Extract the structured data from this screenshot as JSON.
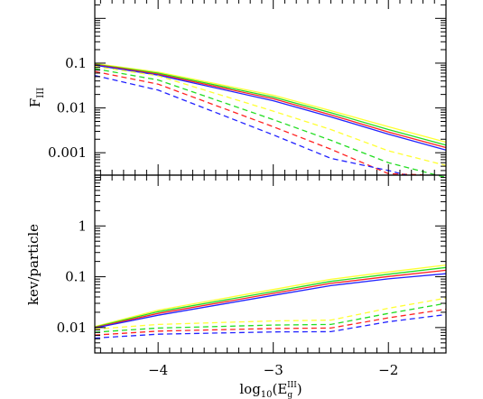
{
  "chart_data": [
    {
      "type": "line",
      "panel": "top",
      "ylabel_main": "F",
      "ylabel_sub": "III",
      "xlim": [
        -4.55,
        -1.5
      ],
      "ylim_log10": [
        -3.5,
        0.45
      ],
      "yscale": "log",
      "y_tick_labels": [
        "0.1",
        "0.01",
        "0.001"
      ],
      "y_tick_values": [
        0.1,
        0.01,
        0.001
      ],
      "series": [
        {
          "color": "#ffff33",
          "style": "solid",
          "x": [
            -4.55,
            -4,
            -3,
            -2.5,
            -2,
            -1.5
          ],
          "y": [
            0.098,
            0.063,
            0.0192,
            0.0087,
            0.0038,
            0.00172
          ]
        },
        {
          "color": "#22dd22",
          "style": "solid",
          "x": [
            -4.55,
            -4,
            -3,
            -2.5,
            -2,
            -1.5
          ],
          "y": [
            0.095,
            0.06,
            0.0175,
            0.0078,
            0.0033,
            0.00148
          ]
        },
        {
          "color": "#ff2222",
          "style": "solid",
          "x": [
            -4.55,
            -4,
            -3,
            -2.5,
            -2,
            -1.5
          ],
          "y": [
            0.093,
            0.057,
            0.016,
            0.007,
            0.0029,
            0.0013
          ]
        },
        {
          "color": "#2222ff",
          "style": "solid",
          "x": [
            -4.55,
            -4,
            -3,
            -2.5,
            -2,
            -1.5
          ],
          "y": [
            0.09,
            0.054,
            0.0145,
            0.0063,
            0.0026,
            0.00115
          ]
        },
        {
          "color": "#ffff33",
          "style": "dashed",
          "x": [
            -4.55,
            -4,
            -3,
            -2.5,
            -2,
            -1.5
          ],
          "y": [
            0.085,
            0.052,
            0.0085,
            0.0033,
            0.0011,
            0.00052
          ]
        },
        {
          "color": "#22dd22",
          "style": "dashed",
          "x": [
            -4.55,
            -4,
            -3,
            -2.5,
            -2,
            -1.5
          ],
          "y": [
            0.075,
            0.042,
            0.0055,
            0.0019,
            0.0006,
            0.00028
          ]
        },
        {
          "color": "#ff2222",
          "style": "dashed",
          "x": [
            -4.55,
            -4,
            -3,
            -2.5,
            -2,
            -1.7
          ],
          "y": [
            0.065,
            0.034,
            0.0038,
            0.0012,
            0.00034,
            0.00032
          ]
        },
        {
          "color": "#2222ff",
          "style": "dashed",
          "x": [
            -4.55,
            -4,
            -3,
            -2.5,
            -2,
            -1.85
          ],
          "y": [
            0.053,
            0.025,
            0.0025,
            0.00075,
            0.0004,
            0.00032
          ]
        }
      ]
    },
    {
      "type": "line",
      "panel": "bottom",
      "ylabel": "kev/particle",
      "xlabel_main": "log",
      "xlabel_sub": "10",
      "xlabel_paren_open": "(E",
      "xlabel_sub2": "g",
      "xlabel_sup2": "III",
      "xlabel_paren_close": ")",
      "xlim": [
        -4.55,
        -1.5
      ],
      "ylim_log10": [
        -2.5,
        1.0
      ],
      "yscale": "log",
      "x_tick_labels": [
        "−4",
        "−3",
        "−2"
      ],
      "x_tick_values": [
        -4,
        -3,
        -2
      ],
      "y_tick_labels": [
        "1",
        "0.1",
        "0.01"
      ],
      "y_tick_values": [
        1,
        0.1,
        0.01
      ],
      "series": [
        {
          "color": "#ffff33",
          "style": "solid",
          "x": [
            -4.55,
            -4,
            -3,
            -2.5,
            -2,
            -1.5
          ],
          "y": [
            0.0105,
            0.022,
            0.056,
            0.089,
            0.124,
            0.17
          ]
        },
        {
          "color": "#22dd22",
          "style": "solid",
          "x": [
            -4.55,
            -4,
            -3,
            -2.5,
            -2,
            -1.5
          ],
          "y": [
            0.0102,
            0.0205,
            0.051,
            0.081,
            0.112,
            0.152
          ]
        },
        {
          "color": "#ff2222",
          "style": "solid",
          "x": [
            -4.55,
            -4,
            -3,
            -2.5,
            -2,
            -1.5
          ],
          "y": [
            0.01,
            0.019,
            0.047,
            0.074,
            0.101,
            0.134
          ]
        },
        {
          "color": "#2222ff",
          "style": "solid",
          "x": [
            -4.55,
            -4,
            -3,
            -2.5,
            -2,
            -1.5
          ],
          "y": [
            0.0098,
            0.0175,
            0.043,
            0.067,
            0.091,
            0.115
          ]
        },
        {
          "color": "#ffff33",
          "style": "dashed",
          "x": [
            -4.55,
            -4,
            -3,
            -2.5,
            -2,
            -1.5
          ],
          "y": [
            0.0093,
            0.0115,
            0.0135,
            0.014,
            0.024,
            0.038
          ]
        },
        {
          "color": "#22dd22",
          "style": "dashed",
          "x": [
            -4.55,
            -4,
            -3,
            -2.5,
            -2,
            -1.5
          ],
          "y": [
            0.0081,
            0.0098,
            0.0112,
            0.0115,
            0.019,
            0.03
          ]
        },
        {
          "color": "#ff2222",
          "style": "dashed",
          "x": [
            -4.55,
            -4,
            -3,
            -2.5,
            -2,
            -1.5
          ],
          "y": [
            0.0071,
            0.0085,
            0.0096,
            0.0098,
            0.0155,
            0.023
          ]
        },
        {
          "color": "#2222ff",
          "style": "dashed",
          "x": [
            -4.55,
            -4,
            -3,
            -2.5,
            -2,
            -1.5
          ],
          "y": [
            0.0062,
            0.0074,
            0.0082,
            0.0083,
            0.013,
            0.018
          ]
        }
      ]
    }
  ]
}
